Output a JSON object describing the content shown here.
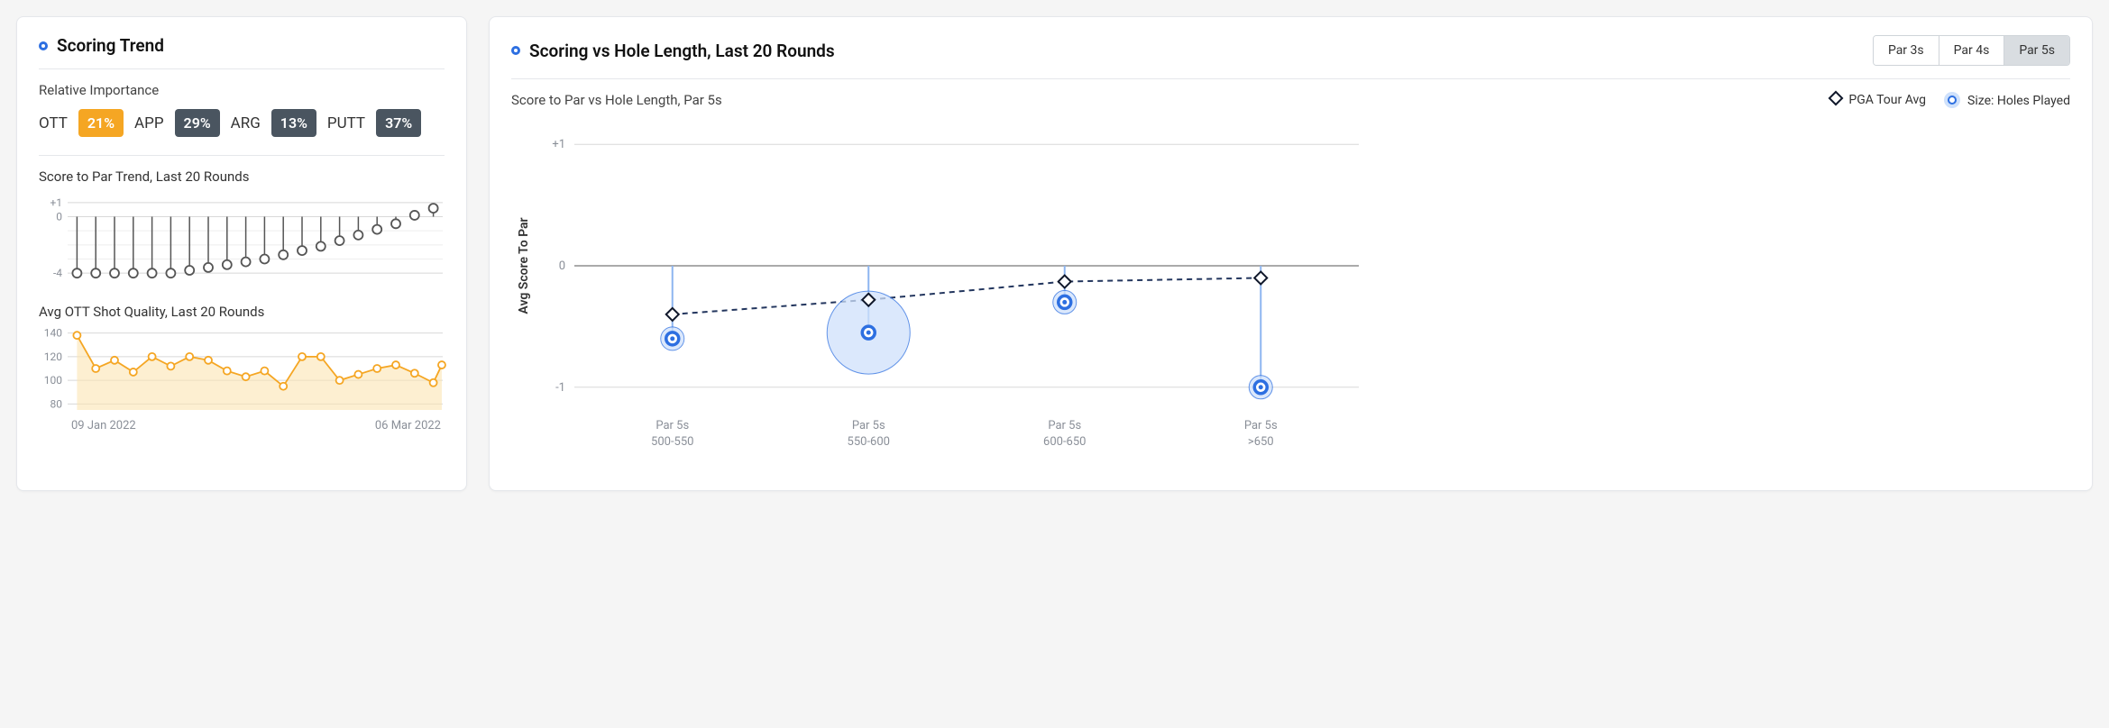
{
  "colors": {
    "accent": "#2d6fe1",
    "grid": "#d8d8d8",
    "axis_text": "#8a8f98",
    "title_text": "#111",
    "sub_text": "#444",
    "ott_badge": "#f5a623",
    "dark_badge": "#4a5560",
    "trend_stroke": "#555",
    "trend_marker_fill": "#fff",
    "ott_line": "#f5a623",
    "ott_fill": "#fbe4b3",
    "bubble_fill": "#cfe1fb",
    "bubble_stroke": "#2d6fe1",
    "diamond_stroke": "#0f172a",
    "diamond_dash": "#23365e",
    "stem_blue": "#8db5f0",
    "border": "#e5e7eb"
  },
  "left_card": {
    "title": "Scoring Trend",
    "importance_label": "Relative Importance",
    "importance": [
      {
        "label": "OTT",
        "value": "21%",
        "highlight": true
      },
      {
        "label": "APP",
        "value": "29%",
        "highlight": false
      },
      {
        "label": "ARG",
        "value": "13%",
        "highlight": false
      },
      {
        "label": "PUTT",
        "value": "37%",
        "highlight": false
      }
    ],
    "trend_chart": {
      "title": "Score to Par Trend, Last 20 Rounds",
      "type": "line",
      "yticks": [
        -4,
        0,
        1
      ],
      "ytick_labels": [
        "-4",
        "0",
        "+1"
      ],
      "ylim": [
        -4.5,
        1.5
      ],
      "stem_color": "#555",
      "marker_fill": "#ffffff",
      "marker_stroke": "#555",
      "marker_radius": 5,
      "values": [
        -4,
        -4,
        -4,
        -4,
        -4,
        -4,
        -3.8,
        -3.6,
        -3.4,
        -3.2,
        -3.0,
        -2.7,
        -2.4,
        -2.1,
        -1.7,
        -1.3,
        -0.9,
        -0.5,
        0.1,
        0.6
      ]
    },
    "ott_chart": {
      "title": "Avg OTT Shot Quality, Last 20 Rounds",
      "type": "area",
      "yticks": [
        80,
        100,
        120,
        140
      ],
      "ylim": [
        75,
        145
      ],
      "line_color": "#f5a623",
      "fill_color": "#fbe4b3",
      "marker_radius": 4,
      "values": [
        138,
        110,
        117,
        107,
        120,
        112,
        120,
        117,
        108,
        103,
        108,
        95,
        120,
        120,
        100,
        105,
        110,
        113,
        106,
        98
      ],
      "trailing": 113,
      "x_label_start": "09 Jan 2022",
      "x_label_end": "06 Mar 2022"
    }
  },
  "right_card": {
    "title": "Scoring vs Hole Length, Last 20 Rounds",
    "tabs": [
      "Par 3s",
      "Par 4s",
      "Par 5s"
    ],
    "active_tab_index": 2,
    "subtitle": "Score to Par vs Hole Length, Par 5s",
    "legend_pga": "PGA Tour Avg",
    "legend_size": "Size: Holes Played",
    "chart": {
      "type": "scatter",
      "y_axis_label": "Avg Score To Par",
      "yticks": [
        -1,
        0,
        1
      ],
      "ytick_labels": [
        "-1",
        "0",
        "+1"
      ],
      "ylim": [
        -1.15,
        1.15
      ],
      "bubble_fill": "#cfe1fb",
      "bubble_stroke": "#2d6fe1",
      "stem_color": "#8db5f0",
      "diamond_stroke": "#0f172a",
      "diamond_fill": "#ffffff",
      "dash_color": "#23365e",
      "categories": [
        {
          "line1": "Par 5s",
          "line2": "500-550",
          "bubble_y": -0.6,
          "diamond_y": -0.4,
          "bubble_r": 13
        },
        {
          "line1": "Par 5s",
          "line2": "550-600",
          "bubble_y": -0.55,
          "diamond_y": -0.28,
          "bubble_r": 46
        },
        {
          "line1": "Par 5s",
          "line2": "600-650",
          "bubble_y": -0.3,
          "diamond_y": -0.13,
          "bubble_r": 13
        },
        {
          "line1": "Par 5s",
          "line2": ">650",
          "bubble_y": -1.0,
          "diamond_y": -0.1,
          "bubble_r": 13
        }
      ]
    }
  }
}
